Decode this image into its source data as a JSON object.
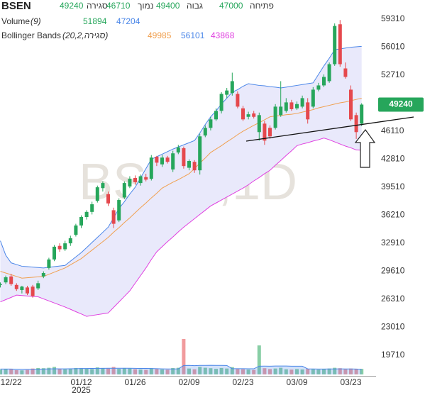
{
  "chart_data": {
    "type": "candlestick",
    "symbol": "BSEN",
    "watermark": "BSEN,1D",
    "ohlc_labels": {
      "close": "סגירה",
      "low": "נמוך",
      "high": "גבוה",
      "open": "פתיחה"
    },
    "up_color": "#26a65b",
    "down_color": "#e5484d",
    "categories": [
      null,
      null,
      "12/22",
      null,
      null,
      null,
      null,
      null,
      null,
      null,
      null,
      null,
      null,
      null,
      null,
      "01/12",
      null,
      null,
      null,
      null,
      null,
      null,
      null,
      null,
      null,
      "01/26",
      null,
      null,
      null,
      null,
      null,
      null,
      null,
      null,
      null,
      "02/09",
      null,
      null,
      null,
      null,
      null,
      null,
      null,
      null,
      null,
      "02/23",
      null,
      null,
      null,
      null,
      null,
      null,
      null,
      null,
      null,
      "03/09",
      null,
      null,
      null,
      null,
      null,
      null,
      null,
      null,
      null,
      "03/23",
      null,
      null
    ],
    "category_sublabels": [
      null,
      null,
      null,
      null,
      null,
      null,
      null,
      null,
      null,
      null,
      null,
      null,
      null,
      null,
      null,
      "2025",
      null,
      null,
      null,
      null,
      null,
      null,
      null,
      null,
      null,
      null,
      null,
      null,
      null,
      null,
      null,
      null,
      null,
      null,
      null,
      null,
      null,
      null,
      null,
      null,
      null,
      null,
      null,
      null,
      null,
      null,
      null,
      null,
      null,
      null,
      null,
      null,
      null,
      null,
      null,
      null,
      null,
      null,
      null,
      null,
      null,
      null,
      null,
      null,
      null,
      null,
      null,
      null
    ],
    "open": [
      28000,
      28300,
      29000,
      28000,
      27400,
      27700,
      27800,
      27600,
      29000,
      30000,
      31000,
      32600,
      32200,
      32900,
      33900,
      35000,
      36000,
      36600,
      37900,
      39400,
      38700,
      36800,
      35600,
      38300,
      39600,
      40600,
      40000,
      40700,
      40500,
      43100,
      42200,
      43000,
      41600,
      43600,
      44100,
      41800,
      42500,
      41500,
      45600,
      46500,
      47500,
      48500,
      50400,
      50600,
      50500,
      48800,
      47800,
      48200,
      46000,
      47000,
      46500,
      46500,
      48000,
      48500,
      49500,
      48800,
      49000,
      49500,
      49000,
      51000,
      51500,
      52000,
      54000,
      58700,
      53500,
      51000,
      48000,
      47000
    ],
    "high": [
      28300,
      29100,
      29300,
      28200,
      27900,
      27900,
      28000,
      28500,
      29600,
      31200,
      32700,
      32900,
      33200,
      33800,
      35200,
      36200,
      36800,
      37800,
      39700,
      40200,
      39000,
      37100,
      38200,
      40200,
      40800,
      40900,
      41000,
      41100,
      43300,
      43200,
      43300,
      43200,
      43800,
      44500,
      44300,
      42800,
      42700,
      45800,
      46800,
      47800,
      48800,
      50700,
      51200,
      53000,
      50800,
      49100,
      48400,
      48500,
      48300,
      47300,
      46800,
      49300,
      52000,
      50000,
      49800,
      49600,
      50300,
      50000,
      51300,
      51800,
      52800,
      54200,
      58800,
      59200,
      54200,
      51500,
      48300,
      49400
    ],
    "low": [
      27700,
      28100,
      27900,
      27300,
      27000,
      26800,
      26500,
      27400,
      28800,
      29800,
      30800,
      31900,
      32000,
      32600,
      33700,
      34700,
      35700,
      36300,
      37700,
      39000,
      37300,
      34700,
      35400,
      38100,
      39400,
      39800,
      39700,
      40200,
      40300,
      42000,
      41900,
      42300,
      41300,
      43400,
      41700,
      41500,
      41200,
      41000,
      45400,
      46200,
      47300,
      48200,
      50000,
      50300,
      48800,
      47300,
      47500,
      47600,
      45000,
      44500,
      45200,
      46300,
      47800,
      48300,
      48500,
      48600,
      48800,
      47000,
      48800,
      50800,
      51300,
      51800,
      53800,
      53700,
      52300,
      47300,
      45200,
      46710
    ],
    "close": [
      28100,
      28900,
      28100,
      27500,
      27800,
      27000,
      26700,
      28200,
      29400,
      31000,
      32500,
      32200,
      32900,
      33500,
      35000,
      36000,
      36600,
      37500,
      39500,
      40000,
      37600,
      35200,
      38000,
      40000,
      40500,
      40100,
      40800,
      40400,
      43000,
      42400,
      43000,
      42500,
      43500,
      44200,
      42000,
      42600,
      41500,
      45500,
      46500,
      47500,
      48500,
      50500,
      50900,
      52000,
      49000,
      47500,
      48100,
      47800,
      48000,
      45000,
      45500,
      49000,
      49000,
      49500,
      48700,
      49300,
      50000,
      47500,
      51000,
      51500,
      52500,
      54000,
      58500,
      54000,
      52500,
      47500,
      46000,
      49240
    ],
    "ylim": [
      17290,
      61560
    ],
    "yticks": [
      19710,
      23010,
      26310,
      29610,
      32910,
      36210,
      39510,
      42810,
      46110,
      52710,
      56010,
      59310
    ],
    "grid": false,
    "bollinger": {
      "name": "Bollinger Bands",
      "params": "(20,2,סגירה)",
      "fill": "#e9e9fb",
      "upper_color": "#4a86e8",
      "middle_color": "#f0a050",
      "lower_color": "#e040e0",
      "upper": [
        33200,
        31500,
        30600,
        30400,
        30200,
        30150,
        30100,
        30050,
        30000,
        30080,
        30150,
        30230,
        30300,
        30800,
        31300,
        31800,
        32400,
        33000,
        33600,
        34200,
        34800,
        35900,
        37000,
        37800,
        38700,
        39500,
        40600,
        41700,
        42800,
        43100,
        43400,
        43700,
        44000,
        44250,
        44500,
        44750,
        45000,
        45900,
        46900,
        47800,
        48500,
        49300,
        50000,
        50700,
        51000,
        51400,
        51700,
        51600,
        51500,
        51450,
        51350,
        51300,
        51200,
        51300,
        51400,
        51500,
        51600,
        51700,
        51800,
        52800,
        53800,
        54700,
        55700,
        55800,
        55900,
        56000,
        56050,
        56101
      ],
      "middle": [
        29600,
        29400,
        29200,
        29000,
        28800,
        28850,
        28900,
        28950,
        29000,
        29250,
        29500,
        29750,
        30000,
        30370,
        30730,
        31100,
        31600,
        32100,
        32600,
        33100,
        33600,
        34200,
        34750,
        35350,
        35900,
        36500,
        37100,
        37650,
        38250,
        38800,
        39400,
        39750,
        40100,
        40400,
        40750,
        41100,
        41700,
        42350,
        42950,
        43600,
        44000,
        44400,
        44850,
        45250,
        45700,
        46100,
        46450,
        46800,
        47100,
        47450,
        47800,
        47900,
        47950,
        48050,
        48100,
        48200,
        48350,
        48500,
        48650,
        48850,
        49000,
        49150,
        49300,
        49450,
        49550,
        49700,
        49850,
        49985
      ],
      "lower": [
        26000,
        26270,
        26530,
        26800,
        26750,
        26700,
        26650,
        26600,
        26360,
        26120,
        25880,
        25640,
        25400,
        25130,
        24850,
        24580,
        24300,
        24400,
        24500,
        24600,
        24700,
        25350,
        26000,
        26650,
        27300,
        28200,
        29100,
        30000,
        31000,
        31900,
        32500,
        33100,
        33650,
        34250,
        34800,
        35300,
        35800,
        36300,
        36800,
        37300,
        37650,
        38000,
        38350,
        38700,
        39050,
        39400,
        39800,
        40250,
        40650,
        41100,
        41500,
        42100,
        42650,
        43250,
        43800,
        44400,
        44600,
        44750,
        44950,
        45100,
        45300,
        45100,
        44850,
        44600,
        44350,
        44150,
        43900,
        43868
      ]
    },
    "volume": {
      "name": "Volume",
      "params": "(9)",
      "ma_color": "#4a86e8",
      "values": [
        45000,
        52000,
        48000,
        40000,
        38000,
        42000,
        55000,
        60000,
        58000,
        62000,
        70000,
        50000,
        48000,
        52000,
        60000,
        58000,
        55000,
        50000,
        65000,
        60000,
        55000,
        70000,
        52000,
        60000,
        55000,
        48000,
        45000,
        42000,
        58000,
        50000,
        46000,
        44000,
        60000,
        62000,
        330000,
        55000,
        48000,
        70000,
        62000,
        58000,
        52000,
        60000,
        55000,
        68000,
        50000,
        48000,
        45000,
        42000,
        270000,
        58000,
        50000,
        55000,
        62000,
        48000,
        45000,
        50000,
        46000,
        52000,
        48000,
        45000,
        50000,
        55000,
        62000,
        58000,
        48000,
        55000,
        52000,
        51894
      ],
      "ma": [
        50000,
        50500,
        50000,
        49000,
        48000,
        47500,
        48000,
        49000,
        50000,
        51000,
        53000,
        52000,
        52000,
        53000,
        54000,
        55000,
        55500,
        56000,
        57000,
        57000,
        58000,
        58000,
        57500,
        58000,
        58000,
        57000,
        56000,
        56000,
        55000,
        54000,
        52000,
        51000,
        51000,
        52000,
        83000,
        84000,
        82000,
        84000,
        84500,
        85000,
        84000,
        84000,
        83500,
        54000,
        54000,
        53500,
        53000,
        52500,
        77000,
        77500,
        77000,
        78000,
        78500,
        78000,
        77000,
        77000,
        76500,
        52000,
        51000,
        50500,
        50500,
        51000,
        51500,
        52000,
        51500,
        51000,
        50000,
        47204
      ]
    }
  }
}
